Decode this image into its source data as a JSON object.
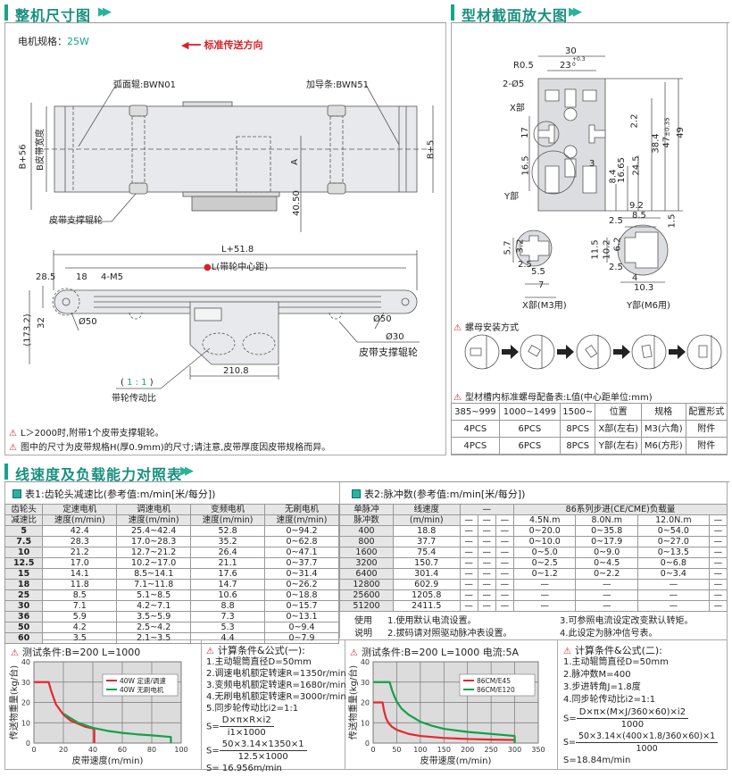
{
  "colors": {
    "accent": "#18a38a",
    "warning": "#d4232b",
    "red_series": "#e8262d",
    "green_series": "#13a04a"
  },
  "section1": {
    "title": "整机尺寸图",
    "icon": "double-chevron-right-icon",
    "motor_spec_label": "电机规格：",
    "motor_spec_value": "25W",
    "direction": "标准传送方向",
    "top_labels": {
      "curved_roller": "弧面辊:BWN01",
      "guide_strip": "加导条:BWN51",
      "b56": "B+56",
      "belt_width": "B皮带宽度",
      "b5": "B+5",
      "a": "A",
      "d4050": "40.50",
      "support_roller": "皮带支撑辊轮"
    },
    "side_labels": {
      "l518": "L+51.8",
      "l_center": "L(带轮中心距)",
      "d285": "28.5",
      "d18": "18",
      "m5": "4-M5",
      "d1732": "(173.2)",
      "d32": "32",
      "phi50_left": "Ø50",
      "phi50_right": "Ø50",
      "phi30": "Ø30",
      "support_roller": "皮带支撑辊轮",
      "d2108": "210.8",
      "ratio_open": "(",
      "ratio": "1 : 1",
      "ratio_close": ")",
      "ratio_label": "带轮传动比"
    },
    "notes": [
      "L＞2000时,附带1个皮带支撑辊轮。",
      "图中的尺寸为皮带规格H(厚0.9mm)的尺寸;请注意,皮带厚度因皮带规格而异。"
    ]
  },
  "section2": {
    "title": "型材截面放大图",
    "profile_labels": {
      "w30": "30",
      "w23": "23",
      "tol23": "+0.3\n0",
      "r05": "R0.5",
      "holes": "2-Ø5",
      "x_part": "X部",
      "d17": "17",
      "d165": "16.5",
      "y_part": "Y部",
      "d22": "2.2",
      "d384": "38.4",
      "d47": "47",
      "tol47": "±0.35",
      "d49": "49",
      "d245": "24.5",
      "d1665": "16.65",
      "d84": "8.4",
      "d3": "3"
    },
    "x_detail": {
      "d57": "5.7",
      "d32": "3.2",
      "d25": "2.5",
      "d55": "5.5",
      "d7": "7",
      "caption": "X部(M3用)"
    },
    "y_detail": {
      "d92": "9.2",
      "d85": "8.5",
      "d25a": "2.5",
      "d15": "1.5",
      "d115": "11.5",
      "d102": "10.2",
      "d62": "6.2",
      "d25b": "2.5",
      "d4": "4",
      "d103": "10.3",
      "caption": "Y部(M6用)"
    },
    "nut_install_title": "螺母安装方式",
    "nut_table_title": "型材槽内标准螺母配备表:L值(中心距单位:mm)",
    "nut_table": {
      "headers": [
        "385~999",
        "1000~1499",
        "1500~",
        "位置",
        "规格",
        "配置形式"
      ],
      "rows": [
        [
          "4PCS",
          "6PCS",
          "8PCS",
          "X部(左右)",
          "M3(六角)",
          "附件"
        ],
        [
          "4PCS",
          "6PCS",
          "8PCS",
          "Y部(左右)",
          "M6(方形)",
          "附件"
        ]
      ]
    }
  },
  "section3": {
    "title": "线速度及负载能力对照表"
  },
  "table1": {
    "title": "表1:齿轮头减速比(参考值:m/min[米/每分])",
    "header_row1": [
      "齿轮头",
      "定速电机",
      "调速电机",
      "变频电机",
      "无刷电机"
    ],
    "header_row2": [
      "减速比",
      "速度(m/min)",
      "速度(m/min)",
      "速度(m/min)",
      "速度(m/min)"
    ],
    "rows": [
      [
        "5",
        "42.4",
        "25.4~42.4",
        "52.8",
        "0~94.2"
      ],
      [
        "7.5",
        "28.3",
        "17.0~28.3",
        "35.2",
        "0~62.8"
      ],
      [
        "10",
        "21.2",
        "12.7~21.2",
        "26.4",
        "0~47.1"
      ],
      [
        "12.5",
        "17.0",
        "10.2~17.0",
        "21.1",
        "0~37.7"
      ],
      [
        "15",
        "14.1",
        "8.5~14.1",
        "17.6",
        "0~31.4"
      ],
      [
        "18",
        "11.8",
        "7.1~11.8",
        "14.7",
        "0~26.2"
      ],
      [
        "25",
        "8.5",
        "5.1~8.5",
        "10.6",
        "0~18.8"
      ],
      [
        "30",
        "7.1",
        "4.2~7.1",
        "8.8",
        "0~15.7"
      ],
      [
        "36",
        "5.9",
        "3.5~5.9",
        "7.3",
        "0~13.1"
      ],
      [
        "50",
        "4.2",
        "2.5~4.2",
        "5.3",
        "0~9.4"
      ],
      [
        "60",
        "3.5",
        "2.1~3.5",
        "4.4",
        "0~7.9"
      ]
    ]
  },
  "table2": {
    "title": "表2:脉冲数(参考值:m/min[米/每分])",
    "header_row1": [
      "单脉冲",
      "线速度",
      "—",
      "86系列步进(CE/CME)负载量"
    ],
    "header_row2": [
      "脉冲数",
      "(m/min)",
      "—",
      "—",
      "—",
      "4.5N.m",
      "8.0N.m",
      "12.0N.m",
      "—"
    ],
    "rows": [
      [
        "400",
        "18.8",
        "—",
        "—",
        "—",
        "0~20.0",
        "0~35.8",
        "0~54.0",
        "—"
      ],
      [
        "800",
        "37.7",
        "—",
        "—",
        "—",
        "0~10.0",
        "0~17.9",
        "0~27.0",
        "—"
      ],
      [
        "1600",
        "75.4",
        "—",
        "—",
        "—",
        "0~5.0",
        "0~9.0",
        "0~13.5",
        "—"
      ],
      [
        "3200",
        "150.7",
        "—",
        "—",
        "—",
        "0~2.5",
        "0~4.5",
        "0~6.8",
        "—"
      ],
      [
        "6400",
        "301.4",
        "—",
        "—",
        "—",
        "0~1.2",
        "0~2.2",
        "0~3.4",
        "—"
      ],
      [
        "12800",
        "602.9",
        "—",
        "—",
        "—",
        "—",
        "—",
        "—",
        "—"
      ],
      [
        "25600",
        "1205.8",
        "—",
        "—",
        "—",
        "—",
        "—",
        "—",
        "—"
      ],
      [
        "51200",
        "2411.5",
        "—",
        "—",
        "—",
        "—",
        "—",
        "—",
        "—"
      ]
    ],
    "usage_label": [
      "使用",
      "说明"
    ],
    "usage": [
      "1.使用默认电流设置。",
      "2.拔码请对照驱动脉冲表设置。",
      "3.可参照电流设定改变默认转矩。",
      "4.此设定为脉冲信号表。"
    ]
  },
  "formula1": {
    "title": "计算条件&公式(一):",
    "lines": [
      "1.主动辊筒直径D=50mm",
      "2.调速电机额定转速R=1350r/min",
      "3.变频电机额定转速R=1680r/min",
      "4.无刷电机额定转速R=3000r/min",
      "5.同步轮传动比i2=1:1"
    ],
    "f1_num": "D×π×R×i2",
    "f1_den": "i1×1000",
    "f2_num": "50×3.14×1350×1",
    "f2_den": "12.5×1000",
    "result": "S= 16.956m/min",
    "s": "S="
  },
  "formula2": {
    "title": "计算条件&公式(二):",
    "lines": [
      "1.主动辊筒直径D=50mm",
      "2.脉冲数M=400",
      "3.步进转角J=1.8度",
      "4.同步轮传动比i2=1:1"
    ],
    "f1_num": "D×π×(M×J/360×60)×i2",
    "f1_den": "1000",
    "f2_num": "50×3.14×(400×1.8/360×60)×1",
    "f2_den": "1000",
    "result": "S=18.84m/min",
    "s": "S="
  },
  "chart_data": [
    {
      "type": "line",
      "title": "测试条件:B=200   L=1000",
      "xlabel": "皮带速度(m/min)",
      "ylabel": "传送物重量(kg/台)",
      "xlim": [
        0,
        100
      ],
      "ylim": [
        0,
        40
      ],
      "xticks": [
        0,
        20,
        40,
        60,
        80,
        100
      ],
      "yticks": [
        0,
        10,
        20,
        30,
        40
      ],
      "grid": true,
      "legend": "top-right",
      "series": [
        {
          "name": "40W 定速/调速",
          "color": "#e8262d",
          "x": [
            0,
            10,
            12,
            15,
            20,
            25,
            30,
            35,
            41,
            41
          ],
          "y": [
            30,
            30,
            25,
            19,
            14,
            11,
            9.5,
            8,
            7,
            0
          ]
        },
        {
          "name": "40W 无刷电机",
          "color": "#13a04a",
          "x": [
            20,
            30,
            40,
            50,
            60,
            70,
            80,
            93,
            93
          ],
          "y": [
            14.5,
            10,
            7.5,
            6,
            5,
            4.3,
            3.8,
            3,
            0
          ]
        }
      ]
    },
    {
      "type": "line",
      "title": "测试条件:B=200   L=1000  电流:5A",
      "xlabel": "皮带速度(m/min)",
      "ylabel": "传送物重量(kg/台)",
      "xlim": [
        0,
        350
      ],
      "ylim": [
        0,
        40
      ],
      "xticks": [
        0,
        50,
        100,
        150,
        200,
        250,
        300,
        350
      ],
      "yticks": [
        0,
        10,
        20,
        30,
        40
      ],
      "grid": true,
      "legend": "top-right",
      "series": [
        {
          "name": "86CM/E45",
          "color": "#e8262d",
          "x": [
            0,
            20,
            23,
            27,
            32,
            40,
            50,
            75,
            100,
            150,
            200,
            250,
            300,
            300
          ],
          "y": [
            20,
            20,
            16,
            12.5,
            10,
            8,
            6.5,
            4.5,
            3.5,
            2.5,
            2,
            1.7,
            1.5,
            0
          ]
        },
        {
          "name": "86CM/E120",
          "color": "#13a04a",
          "x": [
            0,
            35,
            40,
            45,
            50,
            60,
            75,
            100,
            125,
            150,
            200,
            250,
            300,
            300
          ],
          "y": [
            30,
            30,
            26,
            23,
            20.5,
            17,
            14,
            10.5,
            8.5,
            7,
            5.5,
            4.5,
            3.5,
            0
          ]
        }
      ]
    }
  ]
}
